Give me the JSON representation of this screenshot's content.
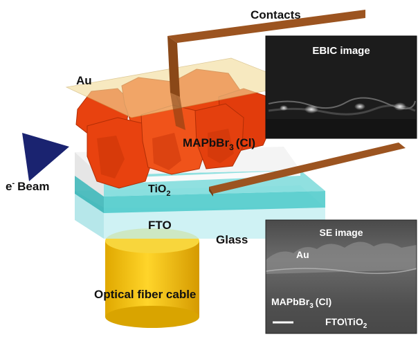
{
  "labels": {
    "contacts": "Contacts",
    "au": "Au",
    "e_beam": "e",
    "e_beam_sup": "-",
    "e_beam_word": "Beam",
    "mapbbr_main": "MAPbBr",
    "mapbbr_sub": "3",
    "mapbbr_tail": "(Cl)",
    "tio2_main": "TiO",
    "tio2_sub": "2",
    "fto": "FTO",
    "glass": "Glass",
    "optical_fiber": "Optical fiber cable"
  },
  "ebic_panel": {
    "title": "EBIC image"
  },
  "se_panel": {
    "title": "SE image",
    "au": "Au",
    "mapbbr_main": "MAPbBr",
    "mapbbr_sub": "3",
    "mapbbr_tail": "(Cl)",
    "fto_tio2_main": "FTO\\TiO",
    "fto_tio2_sub": "2"
  },
  "colors": {
    "contacts": "#9c5420",
    "gold_layer": "#f3dc9a",
    "perovskite": "#e8420f",
    "tio2": "#f4f4f4",
    "fto": "#49c9c9",
    "glass": "#bfeef0",
    "fiber": "#f5c400",
    "beam": "#1a2370"
  }
}
